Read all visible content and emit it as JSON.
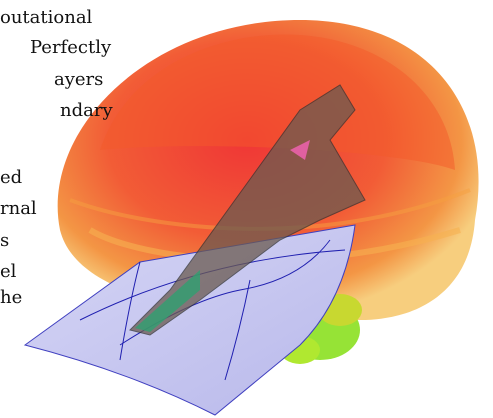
{
  "text_fragments": [
    "outational",
    "Perfectly",
    "ayers",
    "ndary",
    "ed",
    "rnal",
    "s",
    "el",
    "he"
  ]
}
